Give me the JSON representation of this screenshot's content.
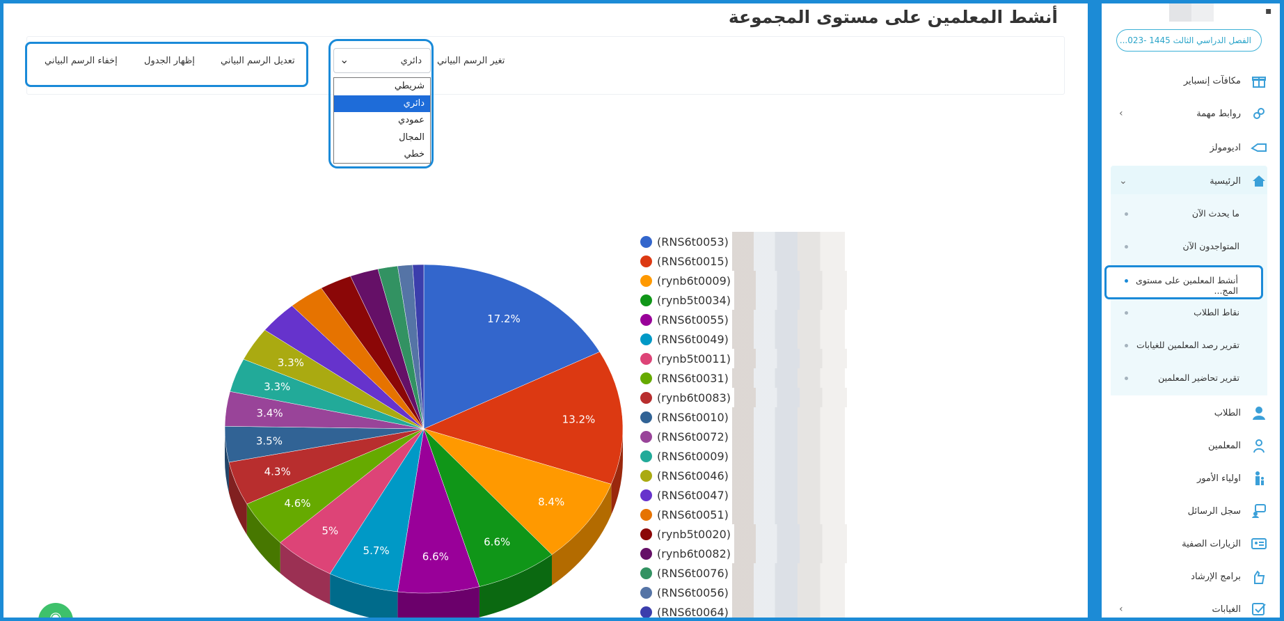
{
  "page": {
    "title": "أنشط المعلمين على مستوى المجموعة"
  },
  "toolbar": {
    "change_chart_label": "تغير الرسم البياني",
    "selected_type": "دائري",
    "options": [
      "شريطي",
      "دائري",
      "عمودي",
      "المجال",
      "خطي"
    ],
    "edit_chart": "تعديل الرسم البياني",
    "show_table": "إظهار الجدول",
    "hide_chart": "إخفاء الرسم البياني"
  },
  "chart_data": {
    "type": "pie",
    "title": "",
    "categories": [
      "(RNS6t0053)",
      "(RNS6t0015)",
      "(rynb6t0009)",
      "(rynb5t0034)",
      "(RNS6t0055)",
      "(RNS6t0049)",
      "(rynb5t0011)",
      "(RNS6t0031)",
      "(rynb6t0083)",
      "(RNS6t0010)",
      "(RNS6t0072)",
      "(RNS6t0009)",
      "(RNS6t0046)",
      "(RNS6t0047)",
      "(RNS6t0051)",
      "(rynb5t0020)",
      "(rynb6t0082)",
      "(RNS6t0076)",
      "(RNS6t0056)",
      "(RNS6t0064)"
    ],
    "values": [
      17.2,
      13.2,
      8.4,
      6.6,
      6.6,
      5.7,
      5,
      4.6,
      4.3,
      3.5,
      3.4,
      3.3,
      3.3,
      3.2,
      2.9,
      2.6,
      2.3,
      1.6,
      1.2,
      0.9
    ],
    "value_labels": [
      "17.2%",
      "13.2%",
      "8.4%",
      "6.6%",
      "6.6%",
      "5.7%",
      "5%",
      "4.6%",
      "4.3%",
      "3.5%",
      "3.4%",
      "3.3%",
      "3.3%",
      "",
      "",
      "",
      "",
      "",
      "",
      ""
    ],
    "colors": [
      "#3366cc",
      "#dc3912",
      "#ff9900",
      "#109618",
      "#990099",
      "#0099c6",
      "#dd4477",
      "#66aa00",
      "#b82e2e",
      "#316395",
      "#994499",
      "#22aa99",
      "#aaaa11",
      "#6633cc",
      "#e67300",
      "#8b0707",
      "#651067",
      "#329262",
      "#5574a6",
      "#3b3eac"
    ],
    "legend_position": "right",
    "is_3d": true
  },
  "sidebar": {
    "semester": "الفصل الدراسي الثالث 1445 -023...",
    "items_top": [
      {
        "label": "مكافآت إنسباير",
        "icon": "gift-icon"
      },
      {
        "label": "روابط مهمة",
        "icon": "link-icon"
      },
      {
        "label": "اديومولز",
        "icon": "edumoles-icon"
      },
      {
        "label": "الرئيسية",
        "icon": "home-icon"
      }
    ],
    "sub_items": [
      "ما يحدث الآن",
      "المتواجدون الآن",
      "أنشط المعلمين على مستوى المج...",
      "نقاط الطلاب",
      "تقرير رصد المعلمين للغيابات",
      "تقرير تحاضير المعلمين"
    ],
    "items_bottom": [
      {
        "label": "الطلاب",
        "icon": "student-icon"
      },
      {
        "label": "المعلمين",
        "icon": "teacher-icon"
      },
      {
        "label": "اولياء الأمور",
        "icon": "parent-icon"
      },
      {
        "label": "سجل الرسائل",
        "icon": "message-log-icon"
      },
      {
        "label": "الزيارات الصفية",
        "icon": "class-visit-icon"
      },
      {
        "label": "برامج الإرشاد",
        "icon": "guidance-icon"
      },
      {
        "label": "الغيابات",
        "icon": "absence-icon"
      }
    ]
  }
}
